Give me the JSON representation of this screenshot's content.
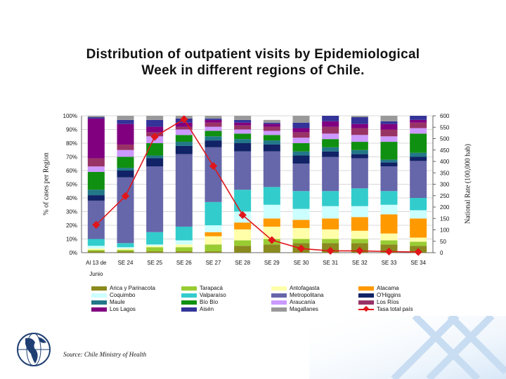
{
  "title_lines": [
    "Distribution of outpatient visits by Epidemiological",
    "Week in different regions of Chile."
  ],
  "source": "Source: Chile Ministry of Health",
  "chart_data": {
    "type": "bar",
    "stacked": true,
    "categories": [
      "Al 13 de Junio",
      "SE 24",
      "SE 25",
      "SE 26",
      "SE 27",
      "SE 28",
      "SE 29",
      "SE 30",
      "SE 31",
      "SE 32",
      "SE 33",
      "SE 34"
    ],
    "category_lines": [
      [
        "Al 13 de",
        "Junio"
      ],
      [
        "SE 24"
      ],
      [
        "SE 25"
      ],
      [
        "SE 26"
      ],
      [
        "SE 27"
      ],
      [
        "SE 28"
      ],
      [
        "SE 29"
      ],
      [
        "SE 30"
      ],
      [
        "SE 31"
      ],
      [
        "SE 32"
      ],
      [
        "SE 33"
      ],
      [
        "SE 34"
      ]
    ],
    "ylabel": "% of cases per Region",
    "y2label": "National Rate (100,000 hab)",
    "ylim": [
      0,
      100
    ],
    "y2lim": [
      0,
      600
    ],
    "yticks": [
      "0%",
      "10%",
      "20%",
      "30%",
      "40%",
      "50%",
      "60%",
      "70%",
      "80%",
      "90%",
      "100%"
    ],
    "y2ticks": [
      "0",
      "50",
      "100",
      "150",
      "200",
      "250",
      "300",
      "350",
      "400",
      "450",
      "500",
      "550",
      "600"
    ],
    "grid": true,
    "legend_position": "bottom",
    "series": [
      {
        "name": "Arica y Parinacota",
        "color": "#8a8a1e",
        "values": [
          1,
          1,
          1,
          1,
          1,
          5,
          6,
          7,
          7,
          7,
          6,
          5
        ]
      },
      {
        "name": "Tarapacá",
        "color": "#99cc33",
        "values": [
          1,
          1,
          3,
          3,
          5,
          4,
          4,
          3,
          3,
          3,
          3,
          3
        ]
      },
      {
        "name": "Antofagasta",
        "color": "#ffffaa",
        "values": [
          1,
          1,
          1,
          2,
          6,
          8,
          9,
          8,
          7,
          6,
          5,
          3
        ]
      },
      {
        "name": "Atacama",
        "color": "#ff9900",
        "values": [
          0,
          0,
          0,
          0,
          3,
          5,
          6,
          6,
          8,
          10,
          14,
          14
        ]
      },
      {
        "name": "Coquimbo",
        "color": "#ccffff",
        "values": [
          2,
          1,
          1,
          3,
          5,
          8,
          10,
          8,
          9,
          8,
          7,
          6
        ]
      },
      {
        "name": "Valparaíso",
        "color": "#33cccc",
        "values": [
          5,
          3,
          9,
          10,
          17,
          16,
          13,
          13,
          11,
          13,
          10,
          9
        ]
      },
      {
        "name": "Metropolitana",
        "color": "#6666aa",
        "values": [
          28,
          48,
          48,
          53,
          40,
          28,
          26,
          20,
          25,
          22,
          18,
          27
        ]
      },
      {
        "name": "O'Higgins",
        "color": "#112266",
        "values": [
          4,
          5,
          6,
          6,
          5,
          6,
          5,
          6,
          4,
          3,
          3,
          3
        ]
      },
      {
        "name": "Maule",
        "color": "#227788",
        "values": [
          4,
          2,
          2,
          3,
          3,
          3,
          3,
          3,
          3,
          3,
          2,
          3
        ]
      },
      {
        "name": "Bío Bío",
        "color": "#109010",
        "values": [
          13,
          8,
          9,
          5,
          4,
          4,
          4,
          6,
          6,
          6,
          13,
          14
        ]
      },
      {
        "name": "Araucanía",
        "color": "#cc99ff",
        "values": [
          4,
          5,
          5,
          4,
          3,
          3,
          3,
          4,
          4,
          5,
          4,
          4
        ]
      },
      {
        "name": "Los Ríos",
        "color": "#993366",
        "values": [
          6,
          4,
          3,
          2,
          3,
          3,
          3,
          4,
          5,
          5,
          5,
          4
        ]
      },
      {
        "name": "Los Lagos",
        "color": "#800080",
        "values": [
          29,
          15,
          4,
          3,
          2,
          2,
          2,
          3,
          4,
          3,
          4,
          2
        ]
      },
      {
        "name": "Aisén",
        "color": "#333399",
        "values": [
          1,
          3,
          5,
          3,
          1,
          2,
          1,
          4,
          4,
          5,
          2,
          3
        ]
      },
      {
        "name": "Magallanes",
        "color": "#999999",
        "values": [
          1,
          3,
          3,
          2,
          2,
          3,
          2,
          5,
          0,
          1,
          4,
          0
        ]
      }
    ],
    "line_series": {
      "name": "Tasa total país",
      "color": "#e0161a",
      "axis": "right",
      "values": [
        122,
        248,
        508,
        585,
        380,
        165,
        55,
        18,
        8,
        8,
        5,
        3
      ]
    }
  }
}
